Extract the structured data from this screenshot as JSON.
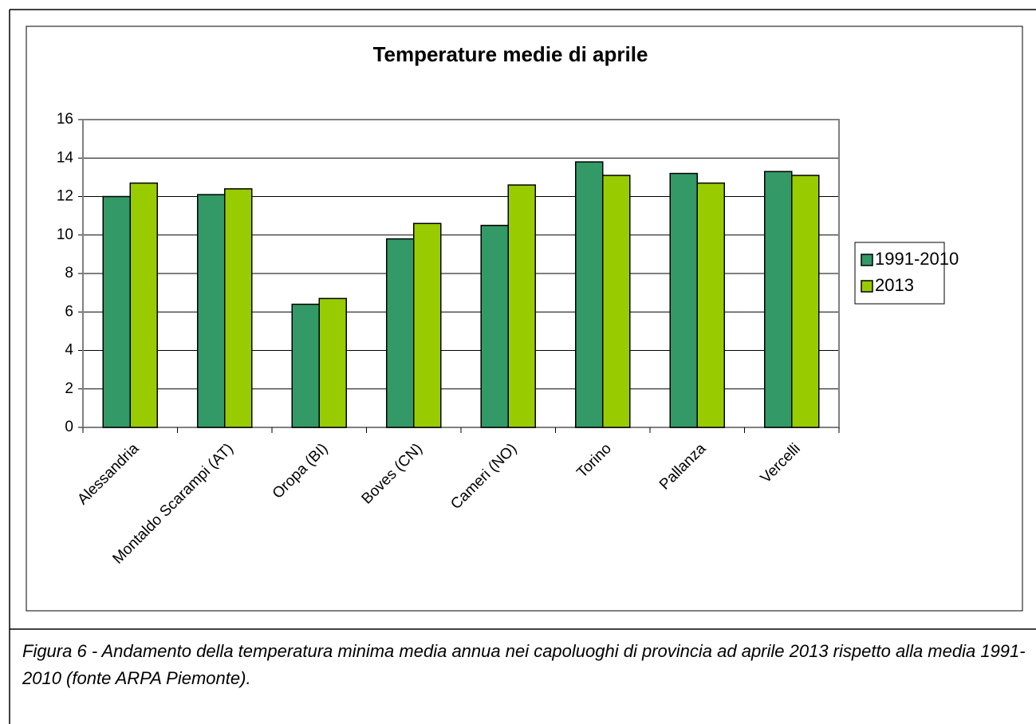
{
  "chart_data": {
    "type": "bar",
    "title": "Temperature medie di aprile",
    "categories": [
      "Alessandria",
      "Montaldo Scarampi (AT)",
      "Oropa (BI)",
      "Boves (CN)",
      "Cameri (NO)",
      "Torino",
      "Pallanza",
      "Vercelli"
    ],
    "series": [
      {
        "name": "1991-2010",
        "color": "#339966",
        "values": [
          12.0,
          12.1,
          6.4,
          9.8,
          10.5,
          13.8,
          13.2,
          13.3
        ]
      },
      {
        "name": "2013",
        "color": "#99cc00",
        "values": [
          12.7,
          12.4,
          6.7,
          10.6,
          12.6,
          13.1,
          12.7,
          13.1
        ]
      }
    ],
    "ylim": [
      0,
      16
    ],
    "yticks": [
      0,
      2,
      4,
      6,
      8,
      10,
      12,
      14,
      16
    ],
    "grid": true,
    "legend": "right"
  },
  "caption": "Figura 6 - Andamento della temperatura minima media annua nei capoluoghi di provincia ad aprile 2013 rispetto alla media 1991-2010 (fonte ARPA Piemonte)."
}
